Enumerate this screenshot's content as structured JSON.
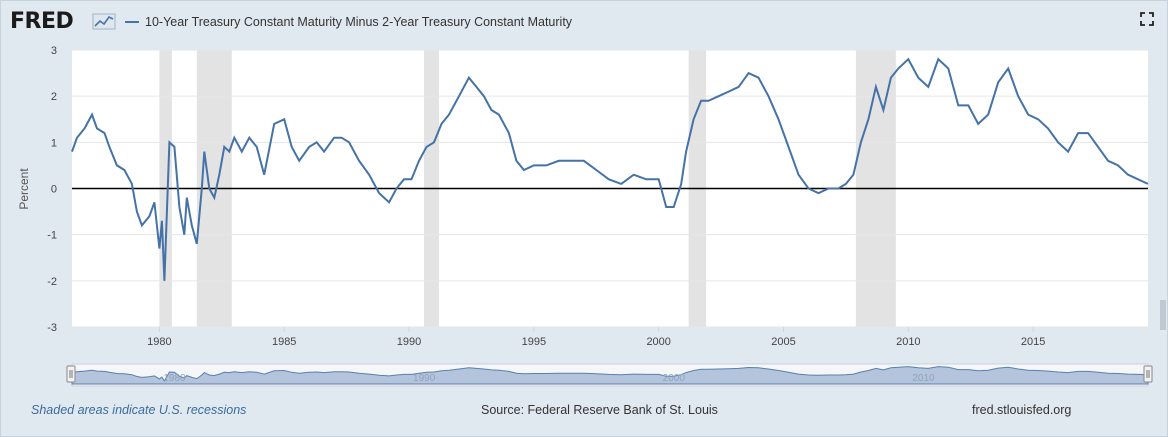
{
  "logo": {
    "text": "FRED",
    "icon": "fred-chart-icon"
  },
  "legend": {
    "label": "10-Year Treasury Constant Maturity Minus 2-Year Treasury Constant Maturity",
    "color": "#4572a7"
  },
  "toolbar": {
    "fullscreen_icon": "fullscreen-icon"
  },
  "footer": {
    "recession_note": "Shaded areas indicate U.S. recessions",
    "source": "Source: Federal Reserve Bank of St. Louis",
    "site": "fred.stlouisfed.org"
  },
  "colors": {
    "line": "#4572a7",
    "recession": "#e3e3e3",
    "zero_line": "#000000",
    "background": "#e1e9f0",
    "plot": "#ffffff",
    "navigator_fill": "#7d9bc4"
  },
  "chart_data": {
    "type": "line",
    "title": "",
    "xlabel": "",
    "ylabel": "Percent",
    "xlim": [
      1976.5,
      2019.6
    ],
    "ylim": [
      -3,
      3
    ],
    "y_ticks": [
      "-3",
      "-2",
      "-1",
      "0",
      "1",
      "2",
      "3"
    ],
    "x_ticks": [
      "1980",
      "1985",
      "1990",
      "1995",
      "2000",
      "2005",
      "2010",
      "2015"
    ],
    "navigator_ticks": [
      "1980",
      "1990",
      "2000",
      "2010"
    ],
    "grid": true,
    "zero_line": true,
    "recessions": [
      [
        1980.0,
        1980.5
      ],
      [
        1981.5,
        1982.9
      ],
      [
        1990.6,
        1991.2
      ],
      [
        2001.2,
        2001.9
      ],
      [
        2007.9,
        2009.5
      ]
    ],
    "series": [
      {
        "x": [
          1976.5,
          1976.7,
          1977.0,
          1977.3,
          1977.5,
          1977.8,
          1978.0,
          1978.3,
          1978.6,
          1978.9,
          1979.1,
          1979.3,
          1979.6,
          1979.8,
          1980.0,
          1980.1,
          1980.2,
          1980.4,
          1980.6,
          1980.8,
          1981.0,
          1981.1,
          1981.3,
          1981.5,
          1981.7,
          1981.8,
          1982.0,
          1982.2,
          1982.4,
          1982.6,
          1982.8,
          1983.0,
          1983.3,
          1983.6,
          1983.9,
          1984.2,
          1984.6,
          1985.0,
          1985.3,
          1985.6,
          1986.0,
          1986.3,
          1986.6,
          1987.0,
          1987.3,
          1987.6,
          1988.0,
          1988.4,
          1988.8,
          1989.2,
          1989.5,
          1989.8,
          1990.1,
          1990.4,
          1990.7,
          1991.0,
          1991.3,
          1991.6,
          1992.0,
          1992.4,
          1992.7,
          1993.0,
          1993.3,
          1993.6,
          1994.0,
          1994.3,
          1994.6,
          1995.0,
          1995.5,
          1996.0,
          1996.5,
          1997.0,
          1997.5,
          1998.0,
          1998.5,
          1999.0,
          1999.5,
          2000.0,
          2000.3,
          2000.6,
          2000.9,
          2001.1,
          2001.4,
          2001.7,
          2002.0,
          2002.4,
          2002.8,
          2003.2,
          2003.6,
          2004.0,
          2004.4,
          2004.8,
          2005.2,
          2005.6,
          2006.0,
          2006.4,
          2006.8,
          2007.2,
          2007.5,
          2007.8,
          2008.1,
          2008.4,
          2008.7,
          2009.0,
          2009.3,
          2009.6,
          2010.0,
          2010.4,
          2010.8,
          2011.2,
          2011.6,
          2012.0,
          2012.4,
          2012.8,
          2013.2,
          2013.6,
          2014.0,
          2014.4,
          2014.8,
          2015.2,
          2015.6,
          2016.0,
          2016.4,
          2016.8,
          2017.2,
          2017.6,
          2018.0,
          2018.4,
          2018.8,
          2019.2,
          2019.6
        ],
        "values": [
          0.8,
          1.1,
          1.3,
          1.6,
          1.3,
          1.2,
          0.9,
          0.5,
          0.4,
          0.1,
          -0.5,
          -0.8,
          -0.6,
          -0.3,
          -1.3,
          -0.7,
          -2.0,
          1.0,
          0.9,
          -0.4,
          -1.0,
          -0.2,
          -0.8,
          -1.2,
          0.0,
          0.8,
          0.0,
          -0.2,
          0.3,
          0.9,
          0.8,
          1.1,
          0.8,
          1.1,
          0.9,
          0.3,
          1.4,
          1.5,
          0.9,
          0.6,
          0.9,
          1.0,
          0.8,
          1.1,
          1.1,
          1.0,
          0.6,
          0.3,
          -0.1,
          -0.3,
          0.0,
          0.2,
          0.2,
          0.6,
          0.9,
          1.0,
          1.4,
          1.6,
          2.0,
          2.4,
          2.2,
          2.0,
          1.7,
          1.6,
          1.2,
          0.6,
          0.4,
          0.5,
          0.5,
          0.6,
          0.6,
          0.6,
          0.4,
          0.2,
          0.1,
          0.3,
          0.2,
          0.2,
          -0.4,
          -0.4,
          0.1,
          0.8,
          1.5,
          1.9,
          1.9,
          2.0,
          2.1,
          2.2,
          2.5,
          2.4,
          2.0,
          1.5,
          0.9,
          0.3,
          0.0,
          -0.1,
          0.0,
          0.0,
          0.1,
          0.3,
          1.0,
          1.5,
          2.2,
          1.7,
          2.4,
          2.6,
          2.8,
          2.4,
          2.2,
          2.8,
          2.6,
          1.8,
          1.8,
          1.4,
          1.6,
          2.3,
          2.6,
          2.0,
          1.6,
          1.5,
          1.3,
          1.0,
          0.8,
          1.2,
          1.2,
          0.9,
          0.6,
          0.5,
          0.3,
          0.2,
          0.1
        ]
      }
    ]
  }
}
